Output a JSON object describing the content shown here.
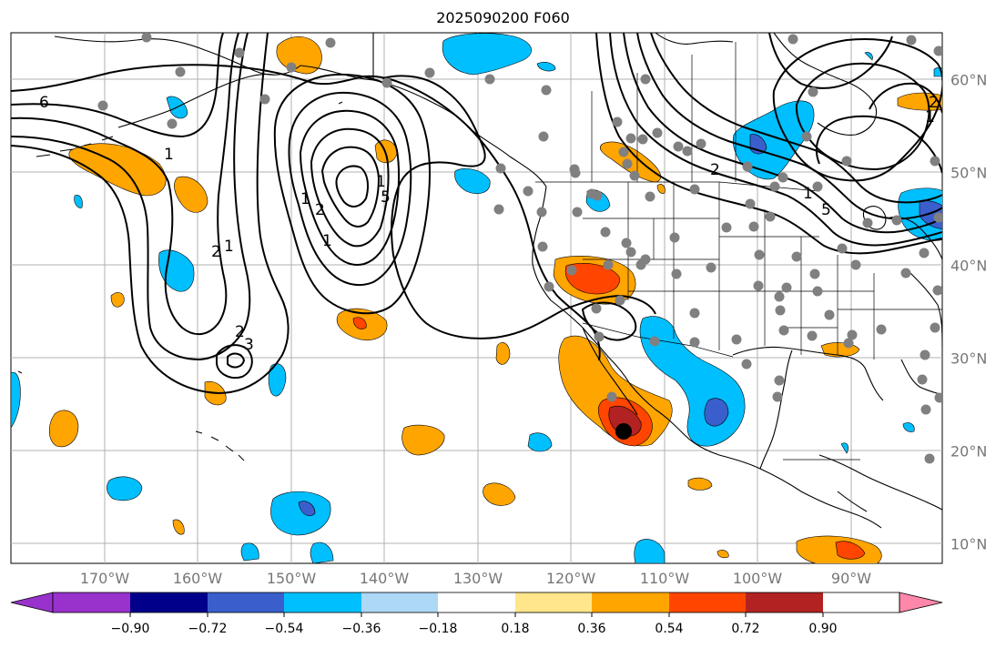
{
  "title": "2025090200 F060",
  "lon_labels": [
    "170°W",
    "160°W",
    "150°W",
    "140°W",
    "130°W",
    "120°W",
    "110°W",
    "100°W",
    "90°W"
  ],
  "lat_labels": [
    "60°N",
    "50°N",
    "40°N",
    "30°N",
    "20°N",
    "10°N"
  ],
  "colorbar": {
    "ticks": [
      "−0.90",
      "−0.72",
      "−0.54",
      "−0.36",
      "−0.18",
      "0.18",
      "0.36",
      "0.54",
      "0.72",
      "0.90"
    ],
    "colors": [
      "#9932cc",
      "#00008b",
      "#3a5fcd",
      "#00bfff",
      "#add8f6",
      "#ffffff",
      "#ffe68a",
      "#ffa500",
      "#ff4500",
      "#b22222",
      "#ff88aa"
    ]
  },
  "contour_labels": [
    "6",
    "1",
    "2",
    "1",
    "3",
    "2",
    "1",
    "5",
    "1",
    "2",
    "1",
    "2",
    "1",
    "5",
    "1",
    "2"
  ],
  "colors": {
    "land_line": "#000000",
    "grid": "#b0b0b0",
    "station": "#808080",
    "storm": "#000000"
  }
}
